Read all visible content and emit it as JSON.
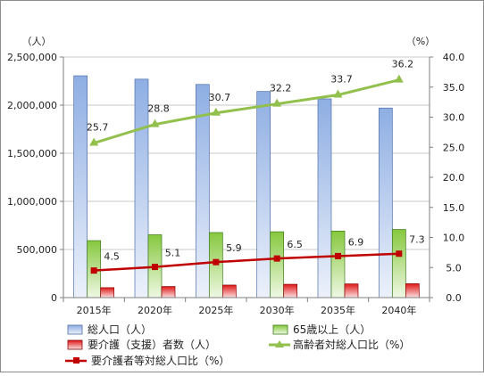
{
  "chart_data": {
    "type": "bar",
    "categories": [
      "2015年",
      "2020年",
      "2025年",
      "2030年",
      "2035年",
      "2040年"
    ],
    "left_axis": {
      "unit": "（人）",
      "ylim": [
        0,
        2500000
      ],
      "ticks": [
        "0",
        "500,000",
        "1,000,000",
        "1,500,000",
        "2,000,000",
        "2,500,000"
      ]
    },
    "right_axis": {
      "unit": "（%）",
      "ylim": [
        0,
        40
      ],
      "ticks": [
        "0.0",
        "5.0",
        "10.0",
        "15.0",
        "20.0",
        "25.0",
        "30.0",
        "35.0",
        "40.0"
      ]
    },
    "series": [
      {
        "name": "総人口（人）",
        "kind": "bar",
        "axis": "left",
        "color": "#9bb7e4",
        "values": [
          2305000,
          2270000,
          2215000,
          2142000,
          2065000,
          1970000
        ]
      },
      {
        "name": "65歳以上（人）",
        "kind": "bar",
        "axis": "left",
        "color": "#8fcf4a",
        "values": [
          592000,
          653000,
          676000,
          684000,
          691000,
          708000
        ]
      },
      {
        "name": "要介護（支援）者数（人）",
        "kind": "bar",
        "axis": "left",
        "color": "#e02020",
        "values": [
          103000,
          115000,
          130000,
          138000,
          142000,
          144000
        ]
      },
      {
        "name": "高齢者対総人口比（%）",
        "kind": "line",
        "axis": "right",
        "color": "#92c04c",
        "values": [
          25.7,
          28.8,
          30.7,
          32.2,
          33.7,
          36.2
        ]
      },
      {
        "name": "要介護者等対総人口比（%）",
        "kind": "line",
        "axis": "right",
        "color": "#c00000",
        "values": [
          4.5,
          5.1,
          5.9,
          6.5,
          6.9,
          7.3
        ]
      }
    ],
    "grid": "horizontal",
    "legend_position": "bottom"
  }
}
